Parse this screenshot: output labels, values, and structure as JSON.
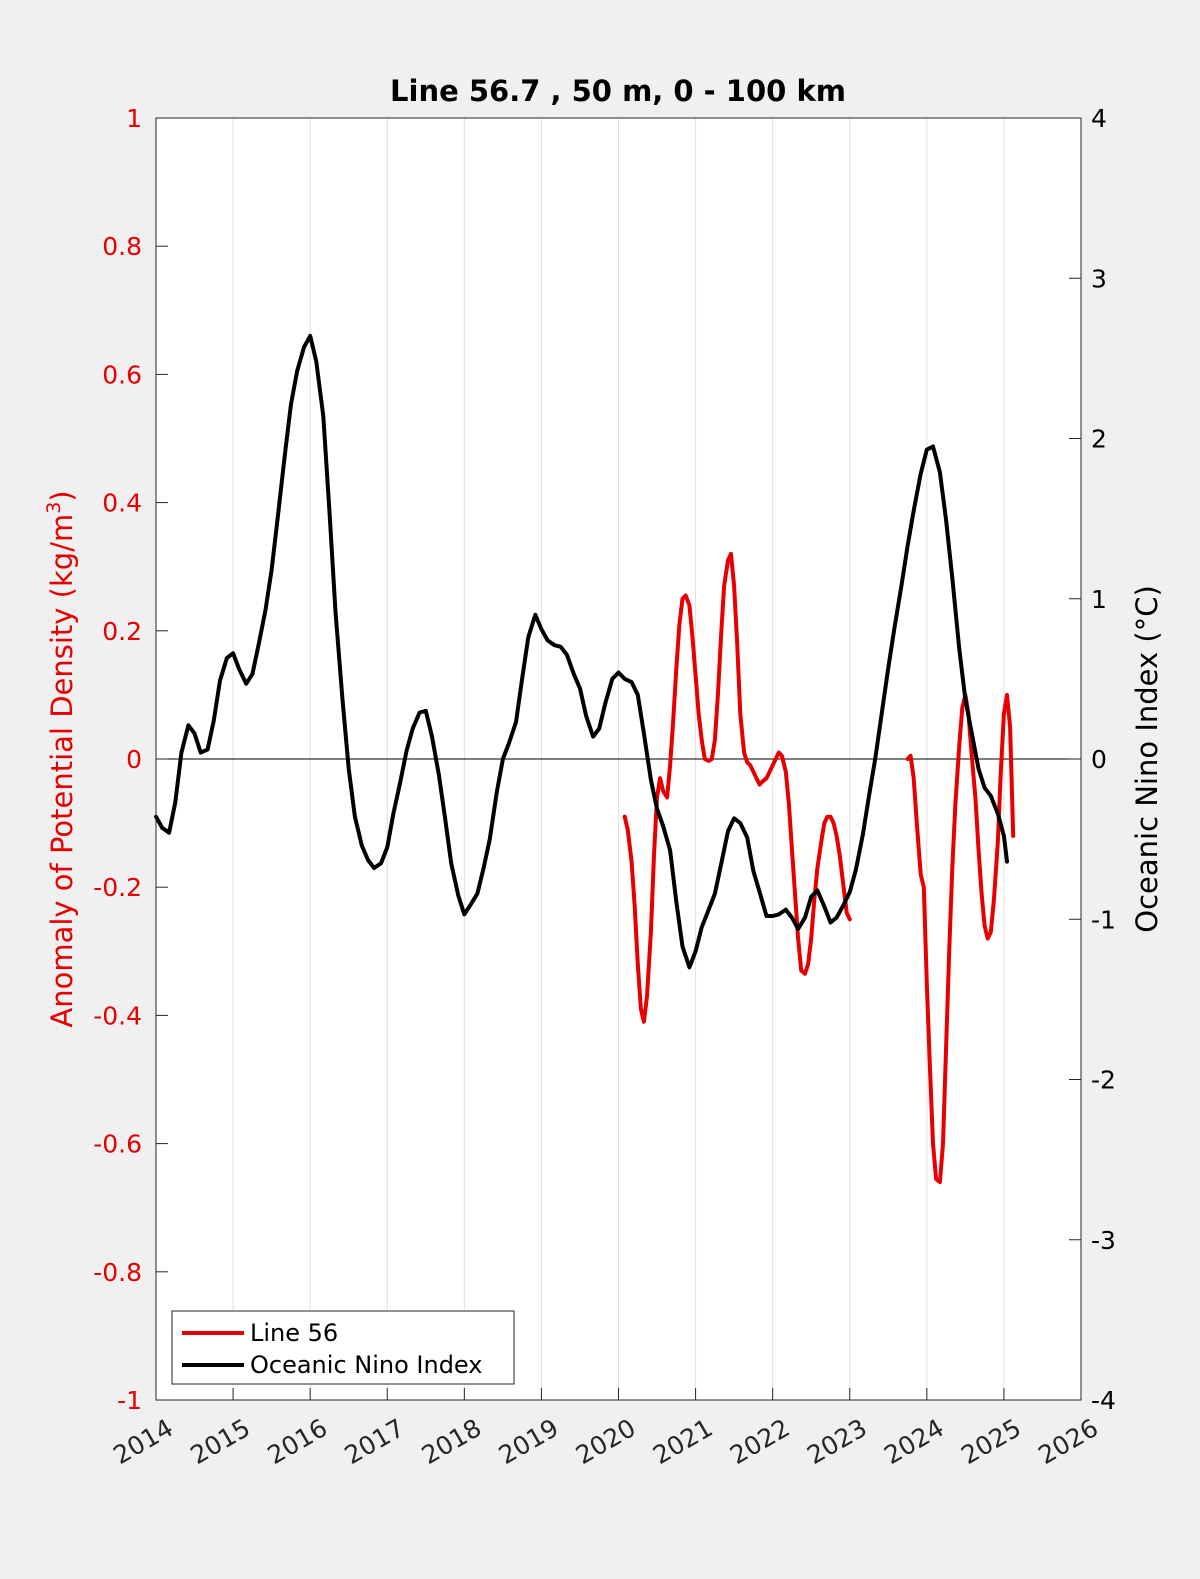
{
  "figure": {
    "background_color": "#f0f0f0",
    "plot_background_color": "#ffffff"
  },
  "chart_data": {
    "type": "line",
    "title": "Line 56.7 , 50 m, 0 - 100 km",
    "x_axis": {
      "range": [
        2014,
        2026
      ],
      "ticks": [
        2014,
        2015,
        2016,
        2017,
        2018,
        2019,
        2020,
        2021,
        2022,
        2023,
        2024,
        2025,
        2026
      ],
      "tick_labels": [
        "2014",
        "2015",
        "2016",
        "2017",
        "2018",
        "2019",
        "2020",
        "2021",
        "2022",
        "2023",
        "2024",
        "2025",
        "2026"
      ],
      "grid": true
    },
    "y_left": {
      "label_prefix": "Anomaly of Potential Density (kg/m",
      "label_superscript": "3",
      "label_suffix": ")",
      "range": [
        -1,
        1
      ],
      "ticks": [
        -1,
        -0.8,
        -0.6,
        -0.4,
        -0.2,
        0,
        0.2,
        0.4,
        0.6,
        0.8,
        1
      ],
      "tick_labels": [
        "-1",
        "-0.8",
        "-0.6",
        "-0.4",
        "-0.2",
        "0",
        "0.2",
        "0.4",
        "0.6",
        "0.8",
        "1"
      ],
      "color": "#e60000"
    },
    "y_right": {
      "label": "Oceanic Nino Index (°C)",
      "range": [
        -4,
        4
      ],
      "ticks": [
        -4,
        -3,
        -2,
        -1,
        0,
        1,
        2,
        3,
        4
      ],
      "tick_labels": [
        "-4",
        "-3",
        "-2",
        "-1",
        "0",
        "1",
        "2",
        "3",
        "4"
      ],
      "color": "#000000"
    },
    "zero_line": true,
    "legend": {
      "position": "bottom-left",
      "entries": [
        {
          "label": "Line 56",
          "color": "#e60000"
        },
        {
          "label": "Oceanic Nino Index",
          "color": "#000000"
        }
      ]
    },
    "series": [
      {
        "name": "Line 56",
        "axis": "left",
        "color": "#e60000",
        "segments": [
          {
            "x": [
              2020.08,
              2020.12,
              2020.17,
              2020.21,
              2020.25,
              2020.29,
              2020.33,
              2020.37,
              2020.42,
              2020.46,
              2020.5,
              2020.54,
              2020.58,
              2020.63,
              2020.67,
              2020.71,
              2020.75,
              2020.79,
              2020.83,
              2020.87,
              2020.92,
              2020.96,
              2021.0,
              2021.04,
              2021.08,
              2021.12,
              2021.17,
              2021.21,
              2021.25,
              2021.29,
              2021.33,
              2021.37,
              2021.42,
              2021.46,
              2021.5,
              2021.54,
              2021.58,
              2021.63,
              2021.67,
              2021.71,
              2021.75,
              2021.79,
              2021.83,
              2021.87,
              2021.92,
              2021.96,
              2022.0,
              2022.04,
              2022.08,
              2022.12,
              2022.17,
              2022.21,
              2022.25,
              2022.29,
              2022.33,
              2022.37,
              2022.42,
              2022.46,
              2022.5,
              2022.54,
              2022.58,
              2022.63,
              2022.67,
              2022.71,
              2022.75,
              2022.79,
              2022.83,
              2022.87,
              2022.92,
              2022.96,
              2023.0
            ],
            "y": [
              -0.09,
              -0.11,
              -0.16,
              -0.23,
              -0.32,
              -0.39,
              -0.41,
              -0.37,
              -0.27,
              -0.15,
              -0.06,
              -0.03,
              -0.05,
              -0.06,
              -0.01,
              0.06,
              0.14,
              0.21,
              0.25,
              0.255,
              0.24,
              0.19,
              0.13,
              0.07,
              0.03,
              0.0,
              -0.003,
              0.0,
              0.03,
              0.1,
              0.19,
              0.27,
              0.31,
              0.32,
              0.27,
              0.18,
              0.07,
              0.01,
              -0.005,
              -0.01,
              -0.02,
              -0.03,
              -0.04,
              -0.035,
              -0.03,
              -0.02,
              -0.01,
              0.0,
              0.01,
              0.005,
              -0.02,
              -0.07,
              -0.14,
              -0.21,
              -0.28,
              -0.33,
              -0.335,
              -0.32,
              -0.28,
              -0.22,
              -0.17,
              -0.13,
              -0.1,
              -0.09,
              -0.09,
              -0.1,
              -0.12,
              -0.15,
              -0.2,
              -0.24,
              -0.25
            ]
          },
          {
            "x": [
              2023.75,
              2023.79,
              2023.83,
              2023.87,
              2023.92,
              2023.96,
              2024.0,
              2024.04,
              2024.08,
              2024.12,
              2024.17,
              2024.21,
              2024.25,
              2024.29,
              2024.33,
              2024.37,
              2024.42,
              2024.46,
              2024.5,
              2024.54,
              2024.58,
              2024.63,
              2024.67,
              2024.71,
              2024.75,
              2024.79,
              2024.83,
              2024.87,
              2024.92,
              2024.96,
              2025.0,
              2025.04,
              2025.08,
              2025.12
            ],
            "y": [
              0.0,
              0.005,
              -0.03,
              -0.1,
              -0.18,
              -0.2,
              -0.35,
              -0.48,
              -0.6,
              -0.655,
              -0.66,
              -0.6,
              -0.45,
              -0.3,
              -0.17,
              -0.07,
              0.02,
              0.08,
              0.1,
              0.07,
              0.01,
              -0.06,
              -0.14,
              -0.21,
              -0.26,
              -0.28,
              -0.27,
              -0.22,
              -0.13,
              -0.02,
              0.07,
              0.1,
              0.05,
              -0.12
            ]
          }
        ]
      },
      {
        "name": "Oceanic Nino Index",
        "axis": "right",
        "color": "#000000",
        "segments": [
          {
            "x": [
              2014.0,
              2014.08,
              2014.17,
              2014.25,
              2014.33,
              2014.42,
              2014.5,
              2014.58,
              2014.67,
              2014.75,
              2014.83,
              2014.92,
              2015.0,
              2015.08,
              2015.17,
              2015.25,
              2015.33,
              2015.42,
              2015.5,
              2015.58,
              2015.67,
              2015.75,
              2015.83,
              2015.92,
              2016.0,
              2016.08,
              2016.17,
              2016.25,
              2016.33,
              2016.42,
              2016.5,
              2016.58,
              2016.67,
              2016.75,
              2016.83,
              2016.92,
              2017.0,
              2017.08,
              2017.17,
              2017.25,
              2017.33,
              2017.42,
              2017.5,
              2017.58,
              2017.67,
              2017.75,
              2017.83,
              2017.92,
              2018.0,
              2018.08,
              2018.17,
              2018.25,
              2018.33,
              2018.42,
              2018.5,
              2018.58,
              2018.67,
              2018.75,
              2018.83,
              2018.92,
              2019.0,
              2019.08,
              2019.17,
              2019.25,
              2019.33,
              2019.42,
              2019.5,
              2019.58,
              2019.67,
              2019.75,
              2019.83,
              2019.92,
              2020.0,
              2020.08,
              2020.17,
              2020.25,
              2020.33,
              2020.42,
              2020.5,
              2020.58,
              2020.67,
              2020.75,
              2020.83,
              2020.92,
              2021.0,
              2021.08,
              2021.17,
              2021.25,
              2021.33,
              2021.42,
              2021.5,
              2021.58,
              2021.67,
              2021.75,
              2021.83,
              2021.92,
              2022.0,
              2022.08,
              2022.17,
              2022.25,
              2022.33,
              2022.42,
              2022.5,
              2022.58,
              2022.67,
              2022.75,
              2022.83,
              2022.92,
              2023.0,
              2023.08,
              2023.17,
              2023.25,
              2023.33,
              2023.42,
              2023.5,
              2023.58,
              2023.67,
              2023.75,
              2023.83,
              2023.92,
              2024.0,
              2024.08,
              2024.17,
              2024.25,
              2024.33,
              2024.42,
              2024.5,
              2024.58,
              2024.67,
              2024.75,
              2024.83,
              2024.92,
              2025.0,
              2025.04
            ],
            "y": [
              -0.36,
              -0.43,
              -0.46,
              -0.27,
              0.04,
              0.21,
              0.16,
              0.04,
              0.06,
              0.24,
              0.49,
              0.63,
              0.66,
              0.56,
              0.47,
              0.53,
              0.71,
              0.93,
              1.18,
              1.51,
              1.89,
              2.21,
              2.42,
              2.57,
              2.64,
              2.48,
              2.14,
              1.55,
              0.91,
              0.37,
              -0.06,
              -0.36,
              -0.54,
              -0.63,
              -0.68,
              -0.65,
              -0.55,
              -0.34,
              -0.14,
              0.05,
              0.19,
              0.29,
              0.3,
              0.14,
              -0.1,
              -0.37,
              -0.65,
              -0.85,
              -0.97,
              -0.91,
              -0.84,
              -0.68,
              -0.5,
              -0.21,
              0.0,
              0.1,
              0.23,
              0.5,
              0.76,
              0.9,
              0.81,
              0.74,
              0.71,
              0.7,
              0.65,
              0.53,
              0.44,
              0.27,
              0.14,
              0.19,
              0.35,
              0.5,
              0.54,
              0.5,
              0.48,
              0.4,
              0.16,
              -0.13,
              -0.31,
              -0.42,
              -0.57,
              -0.89,
              -1.17,
              -1.3,
              -1.2,
              -1.05,
              -0.94,
              -0.84,
              -0.66,
              -0.45,
              -0.37,
              -0.4,
              -0.49,
              -0.7,
              -0.83,
              -0.98,
              -0.98,
              -0.97,
              -0.94,
              -0.99,
              -1.06,
              -0.99,
              -0.86,
              -0.82,
              -0.92,
              -1.02,
              -0.99,
              -0.91,
              -0.83,
              -0.69,
              -0.47,
              -0.23,
              0.0,
              0.3,
              0.57,
              0.82,
              1.08,
              1.33,
              1.55,
              1.78,
              1.93,
              1.95,
              1.79,
              1.49,
              1.13,
              0.69,
              0.37,
              0.17,
              -0.06,
              -0.18,
              -0.23,
              -0.34,
              -0.48,
              -0.64
            ]
          }
        ]
      }
    ]
  }
}
